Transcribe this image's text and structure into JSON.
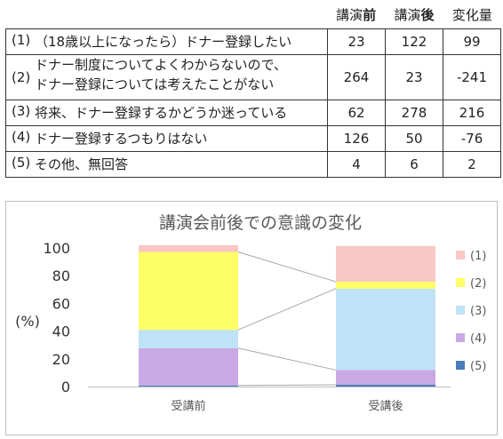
{
  "table": {
    "headers": [
      {
        "prefix": "講演",
        "bold": "前"
      },
      {
        "prefix": "講演",
        "bold": "後"
      },
      {
        "prefix": "変化量",
        "bold": ""
      }
    ],
    "rows": [
      {
        "tag": "(1)",
        "lines": [
          "（18歳以上になったら）ドナー登録したい"
        ],
        "before": "23",
        "after": "122",
        "change": "99"
      },
      {
        "tag": "(2)",
        "lines": [
          "ドナー制度についてよくわからないので、",
          "ドナー登録については考えたことがない"
        ],
        "before": "264",
        "after": "23",
        "change": "-241"
      },
      {
        "tag": "(3)",
        "lines": [
          "将来、ドナー登録するかどうか迷っている"
        ],
        "before": "62",
        "after": "278",
        "change": "216"
      },
      {
        "tag": "(4)",
        "lines": [
          "ドナー登録するつもりはない"
        ],
        "before": "126",
        "after": "50",
        "change": "-76"
      },
      {
        "tag": "(5)",
        "lines": [
          "その他、無回答"
        ],
        "before": "4",
        "after": "6",
        "change": "2"
      }
    ]
  },
  "chart_data": {
    "type": "bar",
    "stacked": true,
    "title": "講演会前後での意識の変化",
    "ylabel": "(%)",
    "xlabel": "",
    "ylim": [
      0,
      100
    ],
    "yticks": [
      0,
      20,
      40,
      60,
      80,
      100
    ],
    "categories": [
      "受講前",
      "受講後"
    ],
    "series": [
      {
        "name": "(5)",
        "color": "#4a7ebb",
        "values": [
          0.8,
          1.3
        ]
      },
      {
        "name": "(4)",
        "color": "#c9a9e3",
        "values": [
          26.9,
          10.6
        ]
      },
      {
        "name": "(3)",
        "color": "#bfe2f7",
        "values": [
          13.2,
          58.8
        ]
      },
      {
        "name": "(2)",
        "color": "#ffff66",
        "values": [
          56.2,
          4.9
        ]
      },
      {
        "name": "(1)",
        "color": "#f8c8c4",
        "values": [
          4.9,
          25.8
        ]
      }
    ],
    "legend_order": [
      "(1)",
      "(2)",
      "(3)",
      "(4)",
      "(5)"
    ],
    "legend_position": "right",
    "grid": false,
    "connector_lines": true
  }
}
